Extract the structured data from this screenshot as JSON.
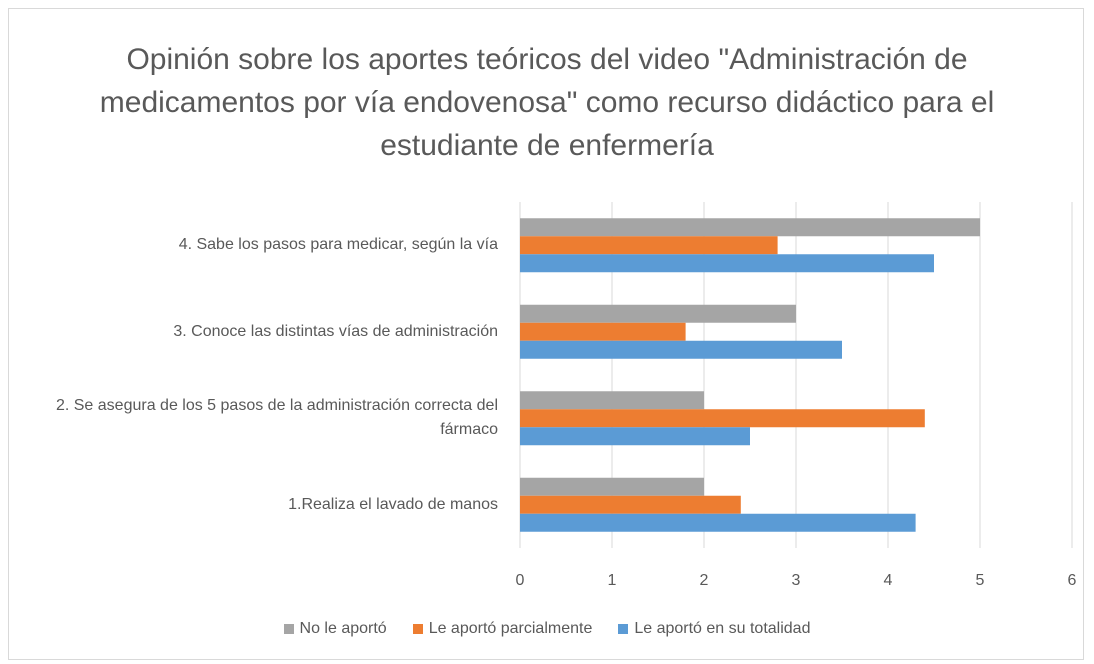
{
  "chart_data": {
    "type": "hbar",
    "title": "Opinión sobre los aportes teóricos del video \"Administración de medicamentos por vía endovenosa\" como recurso didáctico para el estudiante de enfermería",
    "categories": [
      "1.Realiza el lavado de manos",
      "2. Se asegura de los 5 pasos de la administración correcta del fármaco",
      "3. Conoce las distintas vías de administración",
      "4. Sabe los pasos para medicar, según la vía"
    ],
    "series": [
      {
        "name": "No le aportó",
        "color": "#a5a5a5",
        "values": [
          2,
          2,
          3,
          5
        ]
      },
      {
        "name": "Le aportó parcialmente",
        "color": "#ed7d31",
        "values": [
          2.4,
          4.4,
          1.8,
          2.8
        ]
      },
      {
        "name": "Le aportó en su totalidad",
        "color": "#5b9bd5",
        "values": [
          4.3,
          2.5,
          3.5,
          4.5
        ]
      }
    ],
    "xlim": [
      0,
      6
    ],
    "xticks": [
      0,
      1,
      2,
      3,
      4,
      5,
      6
    ],
    "grid": true
  }
}
